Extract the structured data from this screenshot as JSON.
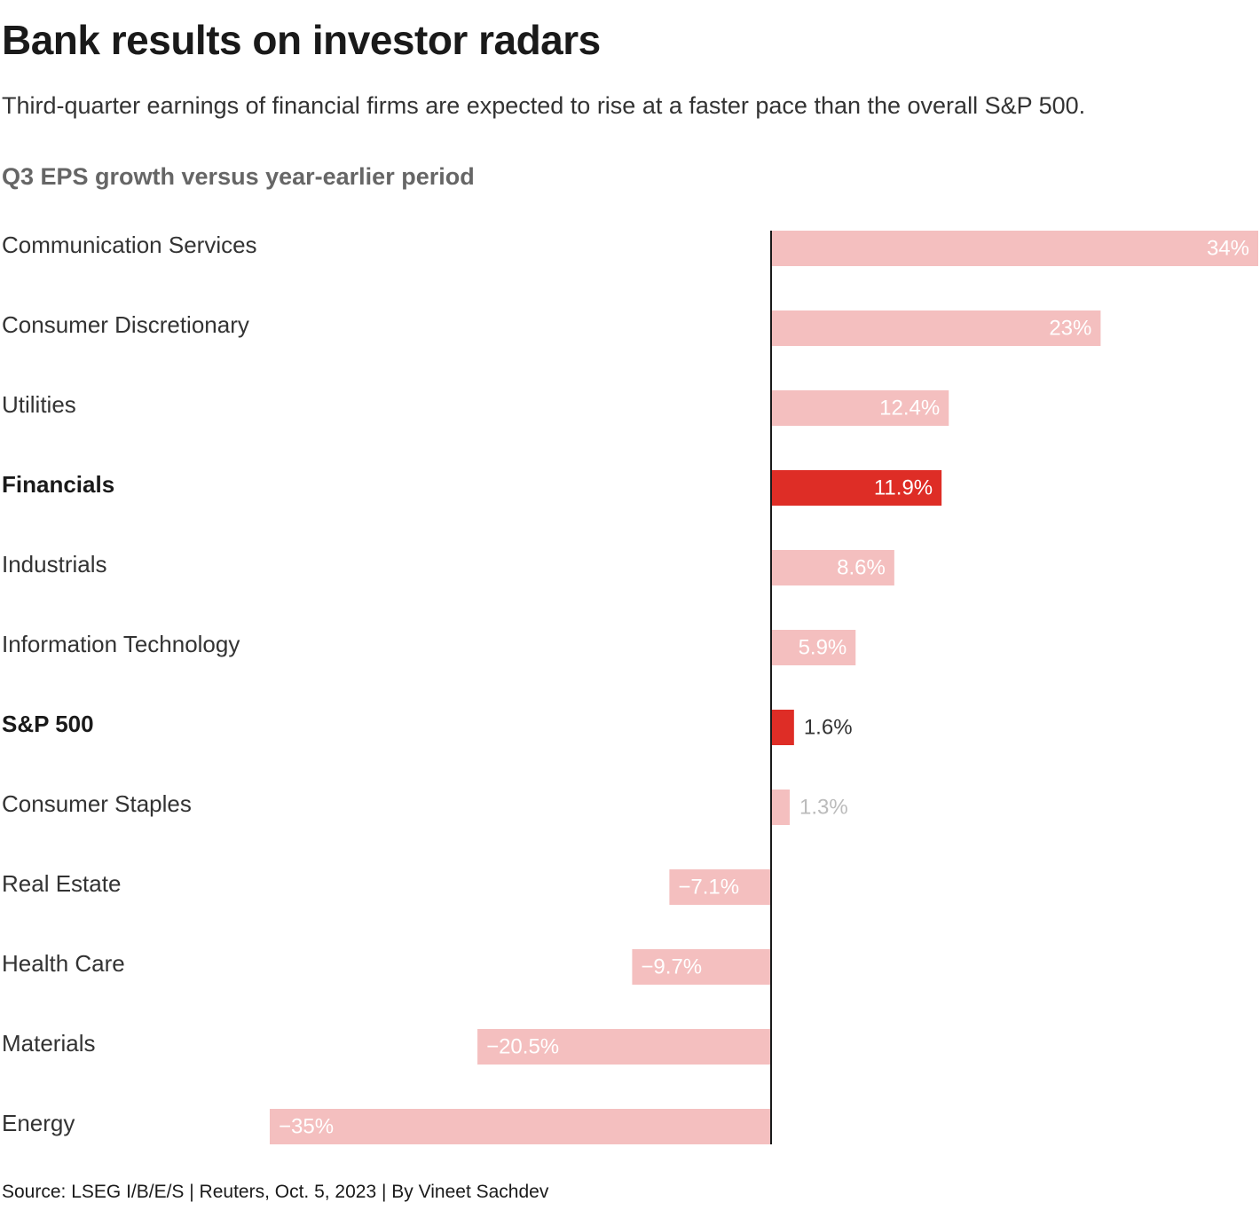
{
  "header": {
    "title": "Bank results on investor radars",
    "subtitle": "Third-quarter earnings of financial firms are expected to rise at a faster pace than the overall S&P 500.",
    "chart_heading": "Q3 EPS growth versus year-earlier period"
  },
  "footer": {
    "source": "Source: LSEG I/B/E/S | Reuters, Oct. 5, 2023 | By Vineet Sachdev"
  },
  "colors": {
    "highlight": "#de2d26",
    "muted": "#f4bfbf",
    "label_on_bar": "#ffffff",
    "label_dark": "#333333",
    "label_faint": "#bbbbbb",
    "axis": "#1a1a1a"
  },
  "chart_data": {
    "type": "bar",
    "orientation": "horizontal",
    "title": "Q3 EPS growth versus year-earlier period",
    "xlabel": "",
    "ylabel": "",
    "xlim": [
      -35,
      34
    ],
    "unit": "%",
    "categories": [
      "Communication Services",
      "Consumer Discretionary",
      "Utilities",
      "Financials",
      "Industrials",
      "Information Technology",
      "S&P 500",
      "Consumer Staples",
      "Real Estate",
      "Health Care",
      "Materials",
      "Energy"
    ],
    "values": [
      34,
      23,
      12.4,
      11.9,
      8.6,
      5.9,
      1.6,
      1.3,
      -7.1,
      -9.7,
      -20.5,
      -35
    ],
    "value_labels": [
      "34%",
      "23%",
      "12.4%",
      "11.9%",
      "8.6%",
      "5.9%",
      "1.6%",
      "1.3%",
      "−7.1%",
      "−9.7%",
      "−20.5%",
      "−35%"
    ],
    "highlighted": [
      "Financials",
      "S&P 500"
    ]
  }
}
